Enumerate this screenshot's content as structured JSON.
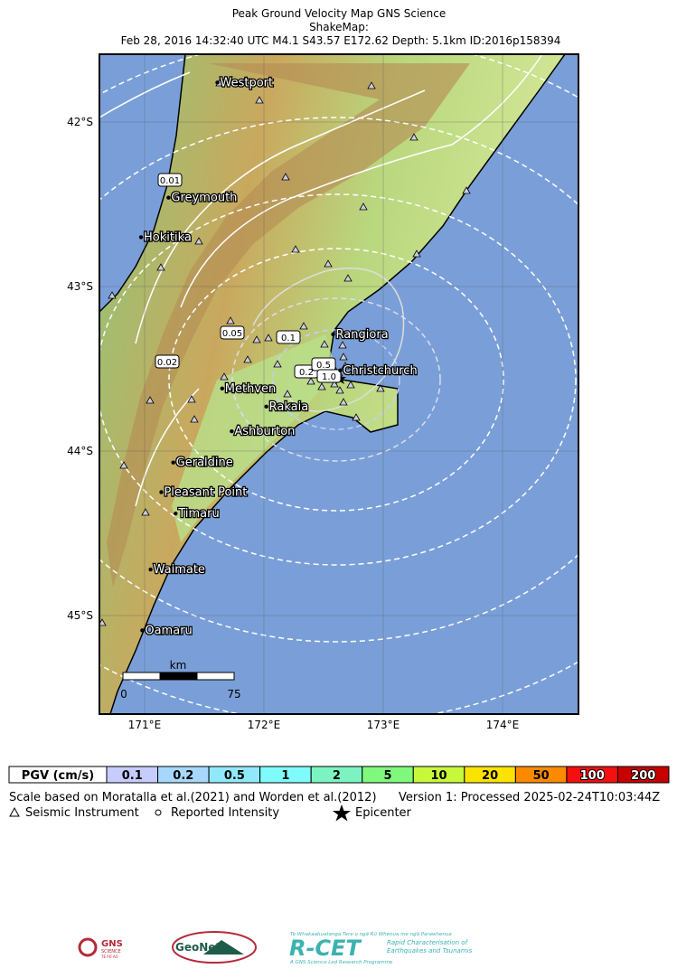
{
  "header": {
    "title": "Peak Ground Velocity Map GNS Science",
    "subtitle": "ShakeMap:",
    "event": "Feb 28, 2016 14:32:40 UTC M4.1 S43.57 E172.62 Depth: 5.1km ID:2016p158394"
  },
  "map": {
    "xticks": [
      {
        "value": 171,
        "label": "171°E"
      },
      {
        "value": 172,
        "label": "172°E"
      },
      {
        "value": 173,
        "label": "173°E"
      },
      {
        "value": 174,
        "label": "174°E"
      }
    ],
    "yticks": [
      {
        "value": 42,
        "label": "42°S"
      },
      {
        "value": 43,
        "label": "43°S"
      },
      {
        "value": 44,
        "label": "44°S"
      },
      {
        "value": 45,
        "label": "45°S"
      }
    ],
    "cities": [
      {
        "name": "Westport",
        "lon": 171.61,
        "lat": 41.76
      },
      {
        "name": "Greymouth",
        "lon": 171.2,
        "lat": 42.46
      },
      {
        "name": "Hokitika",
        "lon": 170.97,
        "lat": 42.7
      },
      {
        "name": "Rangiora",
        "lon": 172.58,
        "lat": 43.29
      },
      {
        "name": "Christchurch",
        "lon": 172.64,
        "lat": 43.51
      },
      {
        "name": "Methven",
        "lon": 171.65,
        "lat": 43.62
      },
      {
        "name": "Rakaia",
        "lon": 172.02,
        "lat": 43.73
      },
      {
        "name": "Ashburton",
        "lon": 171.73,
        "lat": 43.88
      },
      {
        "name": "Geraldine",
        "lon": 171.24,
        "lat": 44.07
      },
      {
        "name": "Pleasant Point",
        "lon": 171.14,
        "lat": 44.25
      },
      {
        "name": "Timaru",
        "lon": 171.26,
        "lat": 44.38
      },
      {
        "name": "Waimate",
        "lon": 171.05,
        "lat": 44.72
      },
      {
        "name": "Oamaru",
        "lon": 170.98,
        "lat": 45.09
      }
    ],
    "contour_labels": [
      "0.01",
      "0.02",
      "0.05",
      "0.1",
      "0.2",
      "0.5",
      "1.0"
    ],
    "scale_bar": {
      "unit": "km",
      "start": "0",
      "end": "75"
    }
  },
  "legend": {
    "title": "PGV (cm/s)",
    "items": [
      {
        "label": "0.1",
        "color": "#c6cdfc"
      },
      {
        "label": "0.2",
        "color": "#a7d8fb"
      },
      {
        "label": "0.5",
        "color": "#90e9fa"
      },
      {
        "label": "1",
        "color": "#7ffbfb"
      },
      {
        "label": "2",
        "color": "#7cf4c2"
      },
      {
        "label": "5",
        "color": "#80f87c"
      },
      {
        "label": "10",
        "color": "#c8f83a"
      },
      {
        "label": "20",
        "color": "#fbe300"
      },
      {
        "label": "50",
        "color": "#fb8a00"
      },
      {
        "label": "100",
        "color": "#f50f0f"
      },
      {
        "label": "200",
        "color": "#c70000"
      }
    ]
  },
  "notes": {
    "scale": "Scale based on Moratalla et al.(2021) and Worden et al.(2012)",
    "version": "Version 1: Processed 2025-02-24T10:03:44Z",
    "instrument": "Seismic Instrument",
    "intensity": "Reported Intensity",
    "epicenter": "Epicenter"
  },
  "logos": {
    "gns": "GNS",
    "gns_sub": "SCIENCE",
    "gns_maori": "TE PŪ AO",
    "geonet": "GeoNet",
    "rcet_top": "Te Whakaahuatanga Tere o ngā Rū Whenua me ngā Parawhenua",
    "rcet": "R-CET",
    "rcet_line1": "Rapid Characterisation of",
    "rcet_line2": "Earthquakes and Tsunamis",
    "rcet_bottom": "A GNS Science Led Research Programme"
  }
}
